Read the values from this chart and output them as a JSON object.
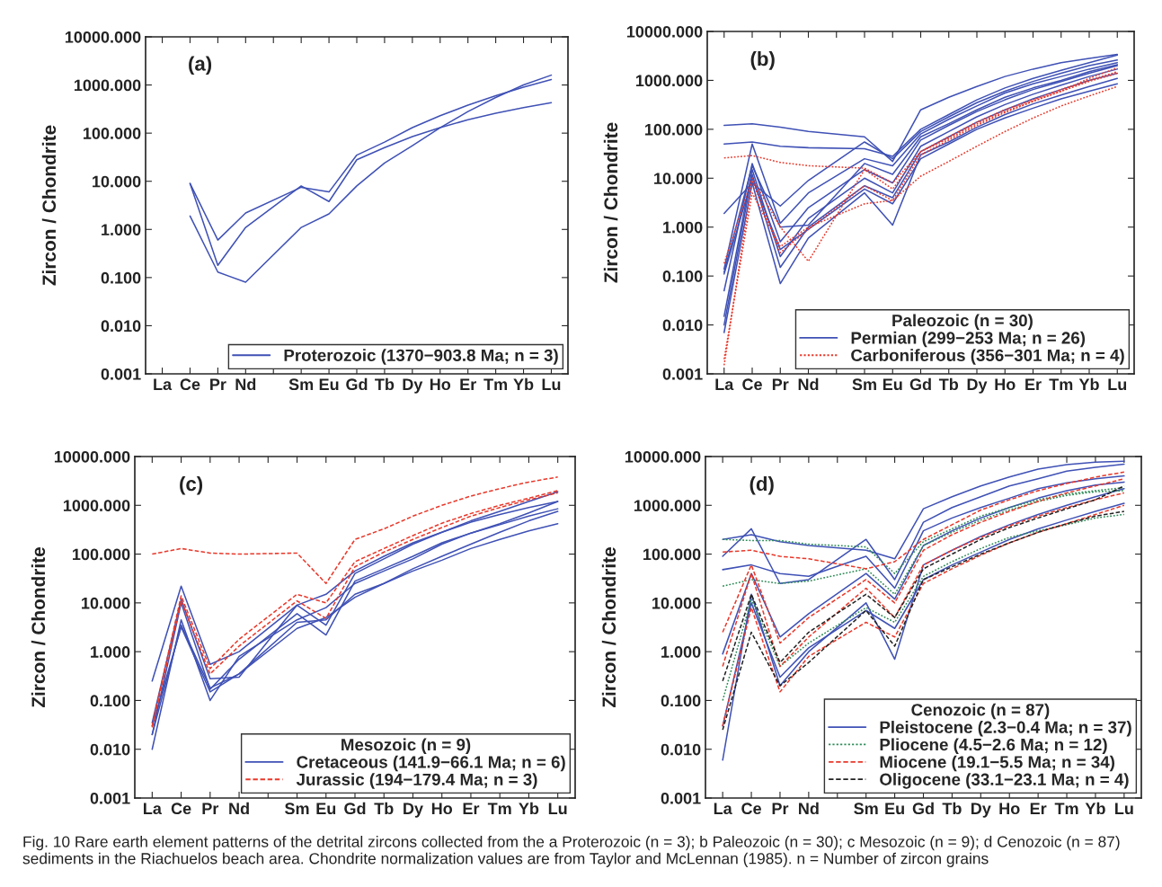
{
  "chart_data": [
    {
      "type": "line",
      "annotations": [
        "(a)"
      ],
      "ylabel": "Zircon / Chondrite",
      "log": "y",
      "ylim": [
        0.001,
        10000
      ],
      "yticks": [
        {
          "value": 0.001,
          "label": "0.001"
        },
        {
          "value": 0.01,
          "label": "0.010"
        },
        {
          "value": 0.1,
          "label": "0.100"
        },
        {
          "value": 1,
          "label": "1.000"
        },
        {
          "value": 10,
          "label": "10.000"
        },
        {
          "value": 100,
          "label": "100.000"
        },
        {
          "value": 1000,
          "label": "1000.000"
        },
        {
          "value": 10000,
          "label": "10000.000"
        }
      ],
      "categories": [
        "La",
        "Ce",
        "Pr",
        "Nd",
        null,
        "Sm",
        "Eu",
        "Gd",
        "Tb",
        "Dy",
        "Ho",
        "Er",
        "Tm",
        "Yb",
        "Lu"
      ],
      "legend": "bottom right",
      "series": [
        {
          "name": "Proterozoic (1370−903.8 Ma; n = 3)",
          "color": "#3f51b5",
          "line_style": "solid",
          "values": [
            null,
            9,
            0.6,
            2.2,
            null,
            7.5,
            6,
            35,
            65,
            130,
            230,
            380,
            600,
            900,
            1300
          ]
        },
        {
          "color": "#3f51b5",
          "line_style": "solid",
          "values": [
            null,
            9,
            0.18,
            1.1,
            null,
            8,
            3.8,
            28,
            50,
            85,
            130,
            190,
            260,
            340,
            430
          ]
        },
        {
          "color": "#3f51b5",
          "line_style": "solid",
          "values": [
            null,
            1.9,
            0.13,
            0.08,
            null,
            1.1,
            2.1,
            8,
            24,
            55,
            130,
            280,
            550,
            1000,
            1600
          ]
        }
      ]
    },
    {
      "type": "line",
      "annotations": [
        "(b)"
      ],
      "ylabel": "Zircon / Chondrite",
      "log": "y",
      "ylim": [
        0.001,
        10000
      ],
      "yticks": [
        {
          "value": 0.001,
          "label": "0.001"
        },
        {
          "value": 0.01,
          "label": "0.010"
        },
        {
          "value": 0.1,
          "label": "0.100"
        },
        {
          "value": 1,
          "label": "1.000"
        },
        {
          "value": 10,
          "label": "10.000"
        },
        {
          "value": 100,
          "label": "100.000"
        },
        {
          "value": 1000,
          "label": "1000.000"
        },
        {
          "value": 10000,
          "label": "10000.000"
        }
      ],
      "categories": [
        "La",
        "Ce",
        "Pr",
        "Nd",
        null,
        "Sm",
        "Eu",
        "Gd",
        "Tb",
        "Dy",
        "Ho",
        "Er",
        "Tm",
        "Yb",
        "Lu"
      ],
      "legend": "bottom right",
      "legend_title": "Paleozoic (n = 30)",
      "series": [
        {
          "name": "Permian (299−253 Ma; n = 26)",
          "color": "#3f51b5",
          "line_style": "solid",
          "values": [
            120,
            130,
            110,
            90,
            null,
            70,
            22,
            250,
            450,
            750,
            1200,
            1700,
            2300,
            2800,
            3400
          ]
        },
        {
          "color": "#3f51b5",
          "line_style": "solid",
          "values": [
            50,
            55,
            45,
            42,
            null,
            40,
            28,
            100,
            200,
            400,
            700,
            1100,
            1600,
            2300,
            3300
          ]
        },
        {
          "color": "#3f51b5",
          "line_style": "solid",
          "values": [
            1.9,
            8,
            2.7,
            9,
            null,
            55,
            25,
            90,
            180,
            350,
            600,
            950,
            1400,
            2000,
            2600
          ]
        },
        {
          "color": "#3f51b5",
          "line_style": "solid",
          "values": [
            0.14,
            50,
            1.2,
            5,
            null,
            25,
            18,
            80,
            160,
            300,
            550,
            850,
            1200,
            1700,
            2300
          ]
        },
        {
          "color": "#3f51b5",
          "line_style": "solid",
          "values": [
            0.05,
            20,
            0.5,
            2.5,
            null,
            15,
            8,
            60,
            120,
            230,
            400,
            650,
            950,
            1400,
            2000
          ]
        },
        {
          "color": "#3f51b5",
          "line_style": "solid",
          "values": [
            0.015,
            15,
            0.25,
            1.5,
            null,
            10,
            5,
            45,
            90,
            180,
            320,
            520,
            800,
            1200,
            1700
          ]
        },
        {
          "color": "#3f51b5",
          "line_style": "solid",
          "values": [
            0.01,
            12,
            0.15,
            1.0,
            null,
            7,
            4,
            35,
            70,
            140,
            250,
            420,
            650,
            1000,
            1400
          ]
        },
        {
          "color": "#3f51b5",
          "line_style": "solid",
          "values": [
            0.007,
            8,
            0.07,
            0.6,
            null,
            5,
            1.1,
            30,
            55,
            110,
            200,
            330,
            500,
            750,
            1100
          ]
        },
        {
          "color": "#3f51b5",
          "line_style": "solid",
          "values": [
            0.12,
            18,
            1.0,
            1.1,
            null,
            20,
            12,
            70,
            130,
            250,
            450,
            700,
            1000,
            1500,
            2100
          ]
        },
        {
          "color": "#3f51b5",
          "line_style": "solid",
          "values": [
            0.11,
            10,
            0.35,
            0.9,
            null,
            6,
            3,
            25,
            50,
            100,
            170,
            270,
            420,
            600,
            850
          ]
        },
        {
          "name": "Carboniferous (356−301 Ma; n = 4)",
          "color": "#e8392b",
          "line_style": "dotted",
          "values": [
            26,
            29,
            21,
            18,
            null,
            16,
            8,
            35,
            70,
            140,
            250,
            400,
            650,
            1000,
            1500
          ]
        },
        {
          "color": "#e8392b",
          "line_style": "dotted",
          "values": [
            0.18,
            10,
            1.0,
            0.2,
            null,
            15,
            6,
            35,
            65,
            130,
            230,
            380,
            600,
            950,
            1400
          ]
        },
        {
          "color": "#e8392b",
          "line_style": "dotted",
          "values": [
            0.0015,
            9,
            0.3,
            0.9,
            null,
            7,
            3.5,
            30,
            60,
            120,
            220,
            370,
            600,
            1100,
            1800
          ]
        },
        {
          "color": "#e8392b",
          "line_style": "dotted",
          "values": [
            0.002,
            5,
            0.4,
            1.0,
            null,
            3,
            3.5,
            11,
            22,
            45,
            90,
            170,
            300,
            480,
            750
          ]
        }
      ]
    },
    {
      "type": "line",
      "annotations": [
        "(c)"
      ],
      "ylabel": "Zircon / Chondrite",
      "log": "y",
      "ylim": [
        0.001,
        10000
      ],
      "yticks": [
        {
          "value": 0.001,
          "label": "0.001"
        },
        {
          "value": 0.01,
          "label": "0.010"
        },
        {
          "value": 0.1,
          "label": "0.100"
        },
        {
          "value": 1,
          "label": "1.000"
        },
        {
          "value": 10,
          "label": "10.000"
        },
        {
          "value": 100,
          "label": "100.000"
        },
        {
          "value": 1000,
          "label": "1000.000"
        },
        {
          "value": 10000,
          "label": "10000.000"
        }
      ],
      "categories": [
        "La",
        "Ce",
        "Pr",
        "Nd",
        null,
        "Sm",
        "Eu",
        "Gd",
        "Tb",
        "Dy",
        "Ho",
        "Er",
        "Tm",
        "Yb",
        "Lu"
      ],
      "legend": "bottom right",
      "legend_title": "Mesozoic (n = 9)",
      "series": [
        {
          "name": "Cretaceous (141.9−66.1 Ma; n = 6)",
          "color": "#3f51b5",
          "line_style": "solid",
          "values": [
            0.25,
            22,
            0.55,
            1.0,
            null,
            9,
            15,
            45,
            90,
            170,
            280,
            480,
            750,
            1200,
            1900
          ]
        },
        {
          "color": "#3f51b5",
          "line_style": "solid",
          "values": [
            0.035,
            12,
            0.28,
            0.3,
            null,
            9,
            3.5,
            40,
            80,
            160,
            280,
            450,
            650,
            900,
            1200
          ]
        },
        {
          "color": "#3f51b5",
          "line_style": "solid",
          "values": [
            0.02,
            10,
            0.17,
            0.7,
            null,
            6,
            2.2,
            28,
            50,
            90,
            170,
            270,
            420,
            700,
            1200
          ]
        },
        {
          "color": "#3f51b5",
          "line_style": "solid",
          "values": [
            0.01,
            4.5,
            0.1,
            0.8,
            null,
            4.5,
            8,
            25,
            45,
            80,
            160,
            270,
            400,
            600,
            850
          ]
        },
        {
          "color": "#3f51b5",
          "line_style": "solid",
          "values": [
            0.03,
            3.2,
            0.15,
            0.35,
            null,
            3,
            5,
            13,
            25,
            50,
            90,
            160,
            280,
            480,
            750
          ]
        },
        {
          "color": "#3f51b5",
          "line_style": "solid",
          "values": [
            0.02,
            3.5,
            0.18,
            0.35,
            null,
            4,
            4.5,
            15,
            25,
            45,
            75,
            130,
            200,
            300,
            420
          ]
        },
        {
          "name": "Jurassic (194−179.4 Ma; n = 3)",
          "color": "#e8392b",
          "line_style": "dashed",
          "values": [
            100,
            130,
            105,
            100,
            null,
            105,
            25,
            200,
            330,
            600,
            1000,
            1550,
            2200,
            3000,
            3800
          ]
        },
        {
          "color": "#e8392b",
          "line_style": "dashed",
          "values": [
            0.03,
            14,
            0.45,
            1.8,
            null,
            15,
            10,
            70,
            130,
            240,
            430,
            680,
            1000,
            1400,
            2000
          ]
        },
        {
          "color": "#e8392b",
          "line_style": "dashed",
          "values": [
            0.028,
            11,
            0.35,
            1.3,
            null,
            11,
            4.8,
            55,
            110,
            200,
            350,
            600,
            900,
            1300,
            1800
          ]
        }
      ]
    },
    {
      "type": "line",
      "annotations": [
        "(d)",
        "Fig. 10 Rare earth element patterns of the detrital zircons collected from the a Proterozoic (n = 3); b Paleozoic (n = 30); c Mesozoic (n = 9); d Cenozoic (n = 87) sediments in the Riachuelos beach area. Chondrite normalization values are from Taylor and McLennan (1985). n = Number of zircon grains"
      ],
      "ylabel": "Zircon / Chondrite",
      "log": "y",
      "ylim": [
        0.001,
        10000
      ],
      "yticks": [
        {
          "value": 0.001,
          "label": "0.001"
        },
        {
          "value": 0.01,
          "label": "0.010"
        },
        {
          "value": 0.1,
          "label": "0.100"
        },
        {
          "value": 1,
          "label": "1.000"
        },
        {
          "value": 10,
          "label": "10.000"
        },
        {
          "value": 100,
          "label": "100.000"
        },
        {
          "value": 1000,
          "label": "1000.000"
        },
        {
          "value": 10000,
          "label": "10000.000"
        }
      ],
      "categories": [
        "La",
        "Ce",
        "Pr",
        "Nd",
        null,
        "Sm",
        "Eu",
        "Gd",
        "Tb",
        "Dy",
        "Ho",
        "Er",
        "Tm",
        "Yb",
        "Lu"
      ],
      "legend": "bottom right",
      "legend_title": "Cenozoic (n = 87)",
      "series": [
        {
          "name": "Pleistocene (2.3−0.4 Ma; n = 37)",
          "color": "#3f51b5",
          "line_style": "solid",
          "values": [
            200,
            250,
            180,
            150,
            null,
            120,
            80,
            850,
            1500,
            2500,
            3800,
            5500,
            6800,
            7700,
            8000
          ]
        },
        {
          "color": "#3f51b5",
          "line_style": "solid",
          "values": [
            90,
            330,
            25,
            30,
            null,
            200,
            30,
            450,
            900,
            1500,
            2500,
            3500,
            5000,
            6000,
            7000
          ]
        },
        {
          "color": "#3f51b5",
          "line_style": "solid",
          "values": [
            48,
            60,
            40,
            35,
            null,
            90,
            20,
            300,
            550,
            900,
            1400,
            2200,
            2900,
            3500,
            4000
          ]
        },
        {
          "color": "#3f51b5",
          "line_style": "solid",
          "values": [
            0.9,
            40,
            2,
            6,
            null,
            40,
            12,
            150,
            300,
            550,
            900,
            1400,
            2000,
            2600,
            3000
          ]
        },
        {
          "color": "#3f51b5",
          "line_style": "solid",
          "values": [
            0.006,
            15,
            0.2,
            1.0,
            null,
            10,
            0.7,
            60,
            120,
            230,
            400,
            650,
            1000,
            1500,
            2200
          ]
        },
        {
          "color": "#3f51b5",
          "line_style": "solid",
          "values": [
            0.03,
            10,
            0.3,
            1.2,
            null,
            7,
            3,
            30,
            60,
            110,
            200,
            330,
            500,
            750,
            1100
          ]
        },
        {
          "name": "Pliocene (4.5−2.6 Ma; n = 12)",
          "color": "#2e8b57",
          "line_style": "dotted",
          "values": [
            200,
            190,
            190,
            160,
            null,
            140,
            40,
            180,
            330,
            600,
            900,
            1300,
            1700,
            2000,
            2300
          ]
        },
        {
          "color": "#2e8b57",
          "line_style": "dotted",
          "values": [
            22,
            30,
            25,
            28,
            null,
            50,
            15,
            150,
            280,
            500,
            800,
            1200,
            1600,
            1900,
            2000
          ]
        },
        {
          "color": "#2e8b57",
          "line_style": "dotted",
          "values": [
            0.1,
            12,
            0.5,
            1.5,
            null,
            8,
            4,
            35,
            70,
            130,
            220,
            300,
            400,
            550,
            650
          ]
        },
        {
          "name": "Miocene (19.1−5.5 Ma; n = 34)",
          "color": "#e8392b",
          "line_style": "dashed",
          "values": [
            110,
            120,
            90,
            80,
            null,
            50,
            70,
            200,
            400,
            800,
            1300,
            2000,
            2800,
            3800,
            4800
          ]
        },
        {
          "color": "#e8392b",
          "line_style": "dashed",
          "values": [
            2.5,
            60,
            1.5,
            5,
            null,
            30,
            10,
            120,
            250,
            450,
            750,
            1200,
            1800,
            2500,
            3500
          ]
        },
        {
          "color": "#e8392b",
          "line_style": "dashed",
          "values": [
            0.5,
            40,
            0.5,
            2,
            null,
            20,
            5,
            60,
            120,
            220,
            380,
            600,
            900,
            1300,
            1800
          ]
        },
        {
          "color": "#e8392b",
          "line_style": "dashed",
          "values": [
            0.03,
            8,
            0.15,
            0.8,
            null,
            4,
            2,
            25,
            50,
            95,
            170,
            280,
            420,
            650,
            1000
          ]
        },
        {
          "name": "Oligocene (33.1−23.1 Ma; n = 4)",
          "color": "#222222",
          "line_style": "dashed",
          "values": [
            0.25,
            15,
            0.6,
            2.5,
            null,
            15,
            5,
            50,
            100,
            200,
            350,
            550,
            850,
            1300,
            2500
          ]
        },
        {
          "color": "#222222",
          "line_style": "dashed",
          "values": [
            0.025,
            2.5,
            0.2,
            0.6,
            null,
            7,
            1.3,
            30,
            55,
            100,
            170,
            280,
            420,
            600,
            750
          ]
        }
      ]
    }
  ]
}
